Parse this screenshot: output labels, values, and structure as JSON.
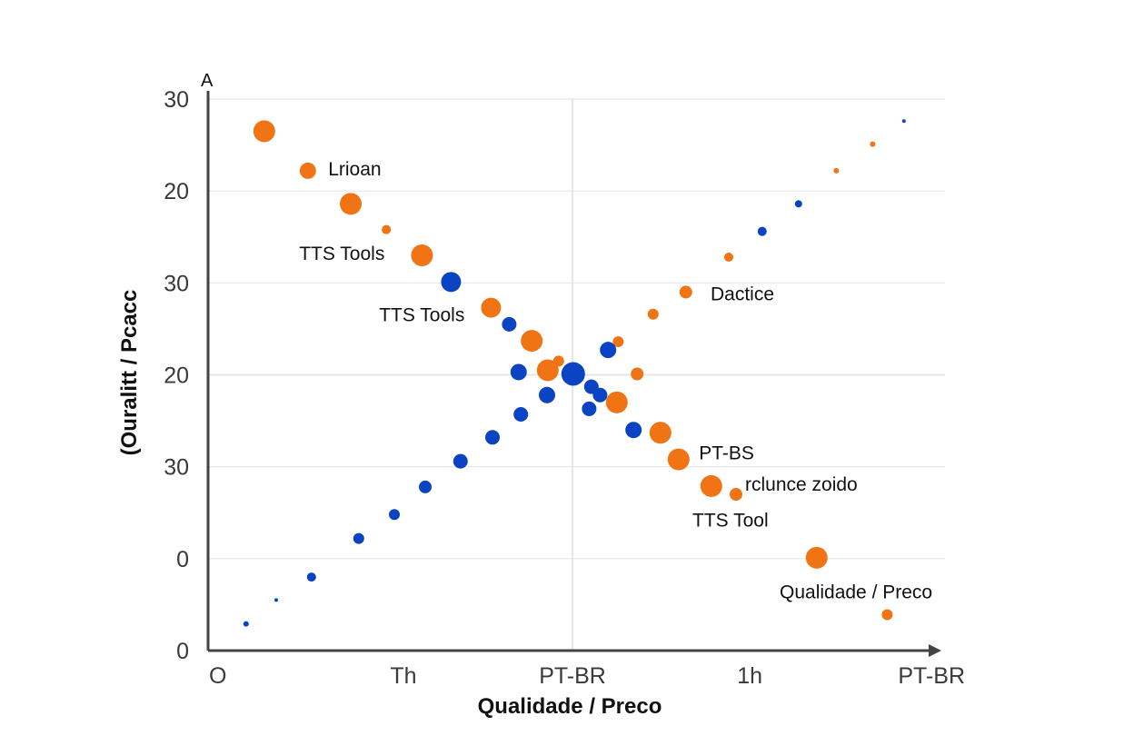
{
  "chart_data": {
    "type": "scatter",
    "title": "A",
    "xlabel": "Qualidade / Preco",
    "ylabel": "(Ouralitt / Pcacc",
    "xlim": [
      0,
      100
    ],
    "ylim": [
      0,
      6
    ],
    "x_ticks": [
      {
        "value": 0,
        "label": "O"
      },
      {
        "value": 26.75,
        "label": "Th"
      },
      {
        "value": 50,
        "label": "PT-BR"
      },
      {
        "value": 74.4,
        "label": "1h"
      },
      {
        "value": 99.4,
        "label": "PT-BR"
      }
    ],
    "y_ticks": [
      {
        "value": 0,
        "label": "0"
      },
      {
        "value": 1,
        "label": "0"
      },
      {
        "value": 2,
        "label": "30"
      },
      {
        "value": 3,
        "label": "20"
      },
      {
        "value": 4,
        "label": "30"
      },
      {
        "value": 5,
        "label": "20"
      },
      {
        "value": 6,
        "label": "30"
      }
    ],
    "grid": true,
    "reference_x": 50,
    "colors": {
      "orange": "#f07314",
      "blue": "#0a44c2",
      "axis": "#444444",
      "grid": "#e6e6ea"
    },
    "series": [
      {
        "color": "#f07314",
        "points": [
          {
            "x": 7.6,
            "y": 5.65,
            "size": 12
          },
          {
            "x": 13.6,
            "y": 5.22,
            "size": 9
          },
          {
            "x": 19.5,
            "y": 4.86,
            "size": 12
          },
          {
            "x": 24.4,
            "y": 4.58,
            "size": 5
          },
          {
            "x": 29.3,
            "y": 4.3,
            "size": 12
          },
          {
            "x": 38.8,
            "y": 3.73,
            "size": 11
          },
          {
            "x": 44.4,
            "y": 3.37,
            "size": 12
          },
          {
            "x": 46.6,
            "y": 3.05,
            "size": 12
          },
          {
            "x": 48.1,
            "y": 3.15,
            "size": 6
          },
          {
            "x": 56.1,
            "y": 2.7,
            "size": 12
          },
          {
            "x": 62.1,
            "y": 2.37,
            "size": 12
          },
          {
            "x": 64.6,
            "y": 2.08,
            "size": 12
          },
          {
            "x": 69.1,
            "y": 1.79,
            "size": 12
          },
          {
            "x": 72.5,
            "y": 1.7,
            "size": 7
          },
          {
            "x": 83.6,
            "y": 1.01,
            "size": 12
          },
          {
            "x": 93.3,
            "y": 0.39,
            "size": 6
          },
          {
            "x": 56.3,
            "y": 3.36,
            "size": 6
          },
          {
            "x": 58.9,
            "y": 3.01,
            "size": 7
          },
          {
            "x": 61.1,
            "y": 3.66,
            "size": 6
          },
          {
            "x": 65.6,
            "y": 3.9,
            "size": 7
          },
          {
            "x": 71.5,
            "y": 4.28,
            "size": 5
          },
          {
            "x": 86.3,
            "y": 5.22,
            "size": 3
          },
          {
            "x": 91.3,
            "y": 5.51,
            "size": 3
          }
        ]
      },
      {
        "color": "#0a44c2",
        "points": [
          {
            "x": 33.3,
            "y": 4.01,
            "size": 11
          },
          {
            "x": 41.3,
            "y": 3.55,
            "size": 8
          },
          {
            "x": 42.6,
            "y": 3.03,
            "size": 9
          },
          {
            "x": 50.1,
            "y": 3.01,
            "size": 13
          },
          {
            "x": 46.5,
            "y": 2.78,
            "size": 9
          },
          {
            "x": 52.6,
            "y": 2.87,
            "size": 8
          },
          {
            "x": 53.8,
            "y": 2.78,
            "size": 8
          },
          {
            "x": 52.3,
            "y": 2.63,
            "size": 8
          },
          {
            "x": 54.9,
            "y": 3.27,
            "size": 9
          },
          {
            "x": 58.4,
            "y": 2.4,
            "size": 9
          },
          {
            "x": 42.9,
            "y": 2.57,
            "size": 8
          },
          {
            "x": 39.0,
            "y": 2.32,
            "size": 8
          },
          {
            "x": 34.6,
            "y": 2.06,
            "size": 8
          },
          {
            "x": 29.75,
            "y": 1.78,
            "size": 7
          },
          {
            "x": 25.5,
            "y": 1.48,
            "size": 6
          },
          {
            "x": 20.6,
            "y": 1.22,
            "size": 6
          },
          {
            "x": 14.1,
            "y": 0.8,
            "size": 5
          },
          {
            "x": 9.25,
            "y": 0.55,
            "size": 2
          },
          {
            "x": 5.1,
            "y": 0.29,
            "size": 3
          },
          {
            "x": 76.1,
            "y": 4.56,
            "size": 5
          },
          {
            "x": 81.1,
            "y": 4.86,
            "size": 4
          },
          {
            "x": 95.6,
            "y": 5.76,
            "size": 2
          }
        ]
      }
    ],
    "annotations": [
      {
        "text": "Lrioan",
        "x": 16.4,
        "y": 5.24
      },
      {
        "text": "TTS Tools",
        "x": 12.4,
        "y": 4.32
      },
      {
        "text": "TTS Tools",
        "x": 23.4,
        "y": 3.65
      },
      {
        "text": "Dactice",
        "x": 69.0,
        "y": 3.88
      },
      {
        "text": "PT-BS",
        "x": 67.4,
        "y": 2.15
      },
      {
        "text": "rclunce zoido",
        "x": 73.75,
        "y": 1.81
      },
      {
        "text": "TTS Tool",
        "x": 66.5,
        "y": 1.42
      },
      {
        "text": "Qualidade / Preco",
        "x": 78.5,
        "y": 0.64
      }
    ]
  }
}
